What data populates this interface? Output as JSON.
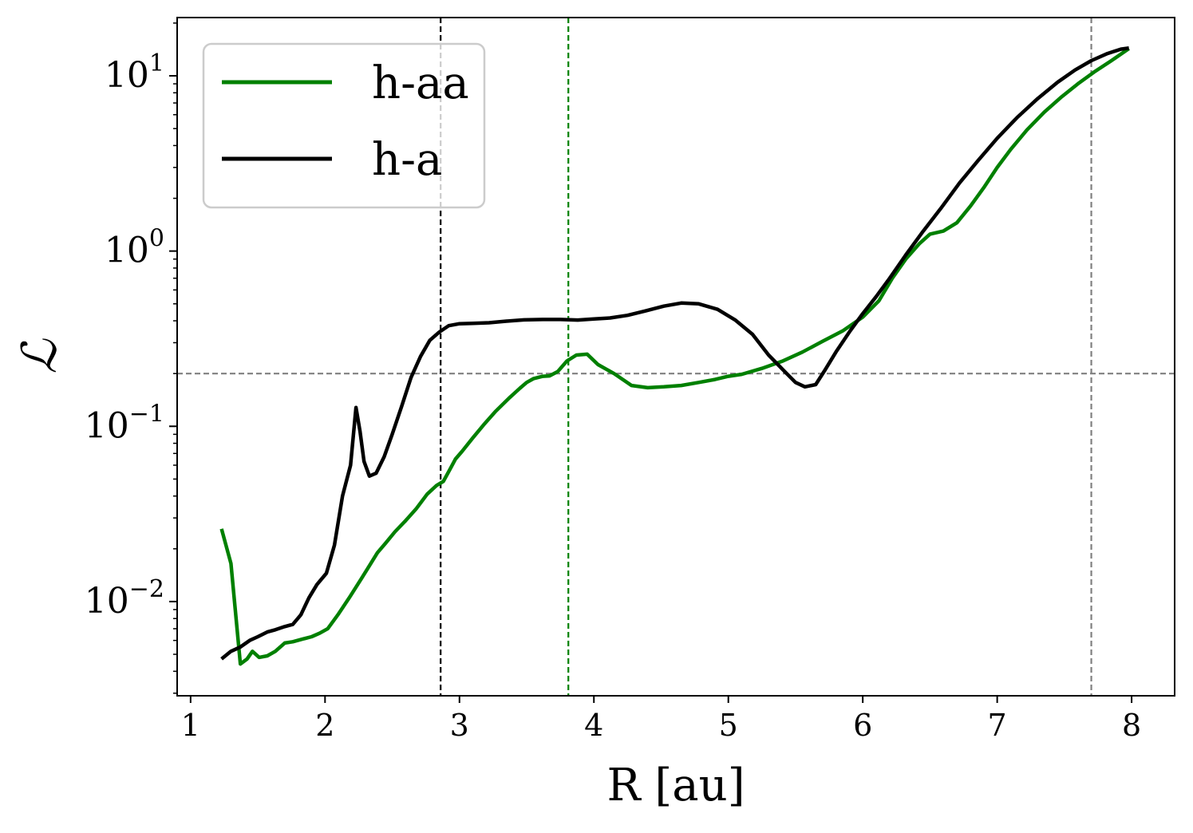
{
  "chart_data": {
    "type": "line",
    "title": "",
    "xlabel": "R [au]",
    "ylabel": "ℒ",
    "x_scale": "linear",
    "y_scale": "log",
    "xlim": [
      0.9,
      8.32
    ],
    "ylim": [
      0.0029,
      21.5
    ],
    "x_ticks": [
      1,
      2,
      3,
      4,
      5,
      6,
      7,
      8
    ],
    "x_tick_labels": [
      "1",
      "2",
      "3",
      "4",
      "5",
      "6",
      "7",
      "8"
    ],
    "y_ticks": [
      0.01,
      0.1,
      1,
      10
    ],
    "y_tick_labels": [
      {
        "base": "10",
        "exp": "−2"
      },
      {
        "base": "10",
        "exp": "−1"
      },
      {
        "base": "10",
        "exp": "0"
      },
      {
        "base": "10",
        "exp": "1"
      }
    ],
    "grid": false,
    "legend": {
      "position": "top-left",
      "entries": [
        "h-aa",
        "h-a"
      ]
    },
    "reference_lines": [
      {
        "orientation": "vertical",
        "x": 2.86,
        "color": "#000000",
        "style": "dashed"
      },
      {
        "orientation": "vertical",
        "x": 3.81,
        "color": "#008000",
        "style": "dashed"
      },
      {
        "orientation": "vertical",
        "x": 7.7,
        "color": "#808080",
        "style": "dashed"
      },
      {
        "orientation": "horizontal",
        "y": 0.2,
        "color": "#808080",
        "style": "dashed"
      }
    ],
    "series": [
      {
        "name": "h-aa",
        "color": "#008000",
        "x": [
          1.23,
          1.3,
          1.37,
          1.42,
          1.46,
          1.51,
          1.57,
          1.63,
          1.7,
          1.76,
          1.83,
          1.9,
          1.96,
          2.02,
          2.1,
          2.18,
          2.27,
          2.33,
          2.39,
          2.45,
          2.52,
          2.6,
          2.68,
          2.76,
          2.83,
          2.88,
          2.93,
          2.97,
          3.02,
          3.1,
          3.18,
          3.27,
          3.37,
          3.45,
          3.5,
          3.55,
          3.62,
          3.67,
          3.73,
          3.8,
          3.87,
          3.95,
          4.03,
          4.15,
          4.28,
          4.4,
          4.52,
          4.65,
          4.78,
          4.9,
          5.0,
          5.1,
          5.25,
          5.4,
          5.55,
          5.7,
          5.85,
          6.0,
          6.12,
          6.22,
          6.32,
          6.42,
          6.5,
          6.6,
          6.7,
          6.8,
          6.9,
          7.0,
          7.1,
          7.22,
          7.35,
          7.48,
          7.6,
          7.72,
          7.85,
          7.98
        ],
        "values": [
          0.026,
          0.0165,
          0.0044,
          0.0047,
          0.0052,
          0.0048,
          0.0049,
          0.0052,
          0.0058,
          0.0059,
          0.0061,
          0.0063,
          0.0066,
          0.007,
          0.0085,
          0.0105,
          0.0135,
          0.016,
          0.019,
          0.0215,
          0.025,
          0.029,
          0.034,
          0.041,
          0.046,
          0.0485,
          0.057,
          0.065,
          0.072,
          0.086,
          0.102,
          0.122,
          0.145,
          0.165,
          0.178,
          0.187,
          0.193,
          0.194,
          0.205,
          0.236,
          0.255,
          0.258,
          0.225,
          0.2,
          0.171,
          0.166,
          0.168,
          0.171,
          0.178,
          0.185,
          0.193,
          0.198,
          0.214,
          0.235,
          0.265,
          0.305,
          0.35,
          0.42,
          0.52,
          0.7,
          0.9,
          1.1,
          1.25,
          1.3,
          1.45,
          1.8,
          2.3,
          3.0,
          3.8,
          4.9,
          6.2,
          7.6,
          9.0,
          10.5,
          12.2,
          14.3
        ]
      },
      {
        "name": "h-a",
        "color": "#000000",
        "x": [
          1.23,
          1.3,
          1.37,
          1.44,
          1.5,
          1.57,
          1.63,
          1.7,
          1.76,
          1.82,
          1.88,
          1.94,
          2.01,
          2.07,
          2.13,
          2.19,
          2.23,
          2.26,
          2.29,
          2.33,
          2.38,
          2.44,
          2.5,
          2.57,
          2.64,
          2.71,
          2.78,
          2.85,
          2.92,
          3.0,
          3.1,
          3.22,
          3.35,
          3.48,
          3.62,
          3.75,
          3.88,
          4.0,
          4.12,
          4.25,
          4.38,
          4.52,
          4.65,
          4.78,
          4.92,
          5.05,
          5.18,
          5.3,
          5.42,
          5.5,
          5.57,
          5.65,
          5.72,
          5.8,
          5.9,
          6.0,
          6.1,
          6.2,
          6.32,
          6.45,
          6.58,
          6.72,
          6.86,
          7.0,
          7.15,
          7.3,
          7.45,
          7.58,
          7.7,
          7.82,
          7.92,
          7.98
        ],
        "values": [
          0.0047,
          0.0052,
          0.0055,
          0.006,
          0.0063,
          0.0067,
          0.0069,
          0.0072,
          0.0074,
          0.0084,
          0.0105,
          0.0125,
          0.0145,
          0.021,
          0.04,
          0.06,
          0.128,
          0.094,
          0.063,
          0.052,
          0.054,
          0.067,
          0.09,
          0.13,
          0.19,
          0.25,
          0.31,
          0.345,
          0.375,
          0.385,
          0.387,
          0.39,
          0.398,
          0.405,
          0.407,
          0.407,
          0.404,
          0.41,
          0.415,
          0.43,
          0.455,
          0.485,
          0.505,
          0.5,
          0.465,
          0.405,
          0.335,
          0.255,
          0.205,
          0.178,
          0.168,
          0.173,
          0.21,
          0.265,
          0.345,
          0.44,
          0.55,
          0.7,
          0.95,
          1.3,
          1.75,
          2.45,
          3.3,
          4.4,
          5.8,
          7.4,
          9.2,
          10.8,
          12.2,
          13.4,
          14.2,
          14.4
        ]
      }
    ]
  }
}
